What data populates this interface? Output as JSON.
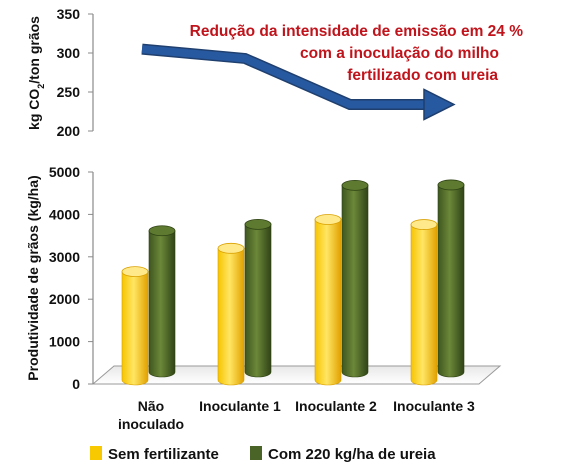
{
  "chart_data": [
    {
      "type": "line",
      "ylabel_parts": [
        "kg CO",
        "2",
        "/ton grãos"
      ],
      "ylim": [
        200,
        350
      ],
      "yticks": [
        "200",
        "250",
        "300",
        "350"
      ],
      "x": [
        "Não inoculado",
        "Inoculante 1",
        "Inoculante 2",
        "Inoculante 3"
      ],
      "series": [
        {
          "values": [
            305,
            293,
            234,
            234
          ]
        }
      ],
      "annotation": [
        "Redução da intensidade de emissão em 24 %",
        "com a inoculação do milho",
        "fertilizado com ureia"
      ],
      "grid": false
    },
    {
      "type": "bar",
      "ylabel": "Produtividade de grãos (kg/ha)",
      "ylim": [
        0,
        5000
      ],
      "yticks": [
        "0",
        "1000",
        "2000",
        "3000",
        "4000",
        "5000"
      ],
      "categories": [
        [
          "Não",
          "inoculado"
        ],
        [
          "Inoculante 1"
        ],
        [
          "Inoculante 2"
        ],
        [
          "Inoculante 3"
        ]
      ],
      "series": [
        {
          "name": "Sem fertilizante",
          "values": [
            2650,
            3200,
            3880,
            3760
          ]
        },
        {
          "name": "Com 220 kg/ha de ureia",
          "values": [
            3520,
            3670,
            4590,
            4600
          ]
        }
      ],
      "legend_position": "bottom",
      "grid": false
    }
  ],
  "colors": {
    "series1_light": "#ffe04a",
    "series1_dark": "#e09e00",
    "series2_light": "#6f8a3c",
    "series2_dark": "#35491a",
    "arrow": "#1f4e8c",
    "annotation": "#c0141c"
  }
}
